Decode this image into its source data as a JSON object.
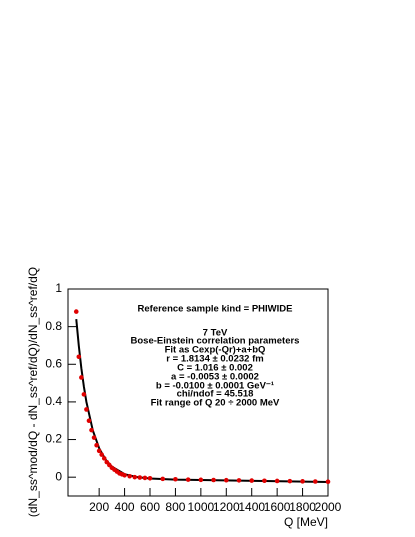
{
  "chart_data": {
    "type": "scatter",
    "x_label": "Q [MeV]",
    "y_label": "(dN_ss^mod/dQ - dN_ss^ref/dQ)/dN_ss^ref/dQ",
    "annotations": [
      "Reference sample kind = PHIWIDE",
      "7 TeV",
      "Bose-Einstein correlation parameters",
      "Fit as  Cexp(-Qr)+a+bQ",
      "r = 1.8134 ± 0.0232 fm",
      "C = 1.016 ± 0.002",
      "a = -0.0053 ± 0.0002",
      "b = -0.0100 ± 0.0001 GeV⁻¹",
      "chi/ndof = 45.518",
      "Fit range of Q   20 ÷ 2000 MeV"
    ],
    "xlim": [
      -45,
      2000
    ],
    "ylim": [
      -0.1,
      1
    ],
    "xticks": [
      200,
      400,
      600,
      800,
      1000,
      1200,
      1400,
      1600,
      1800,
      2000
    ],
    "yticks": [
      0,
      0.2,
      0.4,
      0.6,
      0.8,
      1
    ],
    "points": {
      "color": "#e00000",
      "x": [
        20,
        40,
        60,
        80,
        100,
        120,
        140,
        160,
        180,
        200,
        220,
        240,
        260,
        280,
        300,
        320,
        340,
        360,
        380,
        400,
        440,
        480,
        520,
        560,
        600,
        700,
        800,
        900,
        1000,
        1100,
        1200,
        1300,
        1400,
        1500,
        1600,
        1700,
        1800,
        1900,
        2000
      ],
      "values": [
        0.88,
        0.64,
        0.53,
        0.44,
        0.36,
        0.3,
        0.25,
        0.21,
        0.17,
        0.14,
        0.12,
        0.1,
        0.08,
        0.065,
        0.05,
        0.04,
        0.03,
        0.02,
        0.015,
        0.01,
        0.005,
        0.0,
        -0.002,
        -0.004,
        -0.006,
        -0.009,
        -0.011,
        -0.013,
        -0.014,
        -0.015,
        -0.016,
        -0.017,
        -0.018,
        -0.019,
        -0.02,
        -0.021,
        -0.022,
        -0.023,
        -0.024
      ]
    },
    "fit": {
      "color": "#000000",
      "x": [
        20,
        40,
        60,
        80,
        100,
        150,
        200,
        250,
        300,
        400,
        500,
        600,
        800,
        1000,
        1500,
        2000
      ],
      "values": [
        0.84,
        0.698,
        0.579,
        0.481,
        0.399,
        0.249,
        0.154,
        0.094,
        0.056,
        0.016,
        0.0,
        -0.007,
        -0.0127,
        -0.0153,
        -0.0203,
        -0.0253
      ]
    }
  }
}
